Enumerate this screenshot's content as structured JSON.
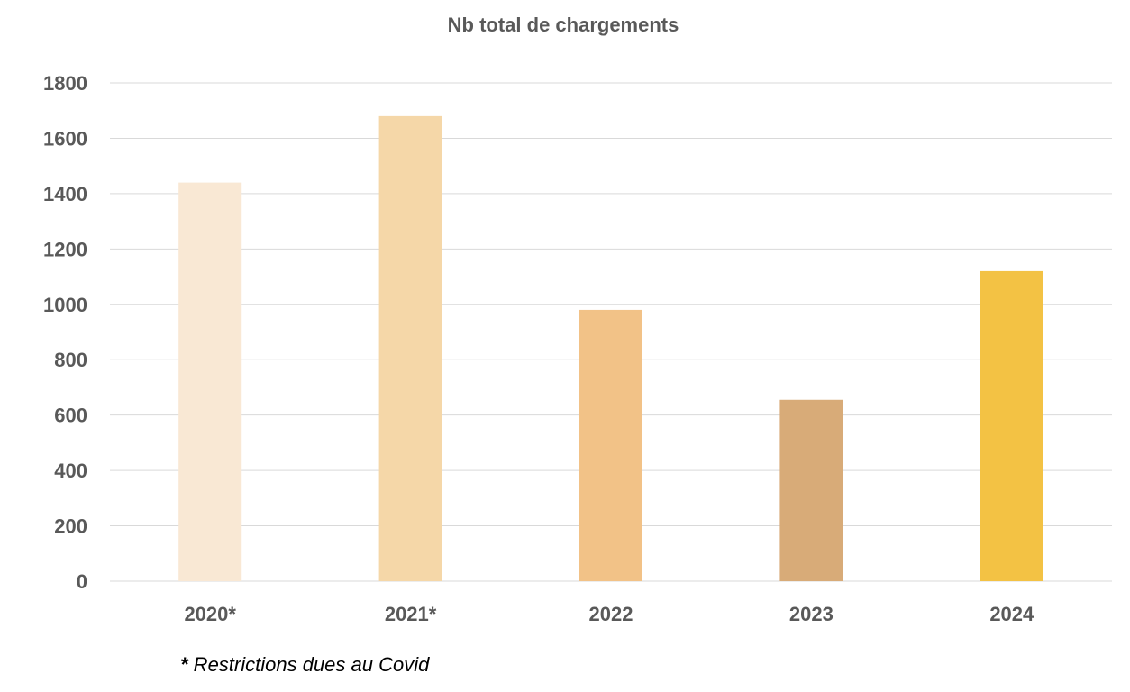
{
  "chart_data": {
    "type": "bar",
    "title": "Nb total de chargements",
    "xlabel": "",
    "ylabel": "",
    "categories": [
      "2020*",
      "2021*",
      "2022",
      "2023",
      "2024"
    ],
    "values": [
      1440,
      1680,
      980,
      655,
      1120
    ],
    "bar_colors": [
      "#f9e8d4",
      "#f5d7a8",
      "#f2c287",
      "#d8ab78",
      "#f3c244"
    ],
    "ylim": [
      0,
      1800
    ],
    "yticks": [
      "0",
      "200",
      "400",
      "600",
      "800",
      "1000",
      "1200",
      "1400",
      "1600",
      "1800"
    ],
    "grid": true,
    "legend": "none"
  },
  "footnote": {
    "star": "*",
    "text": " Restrictions dues au Covid"
  }
}
